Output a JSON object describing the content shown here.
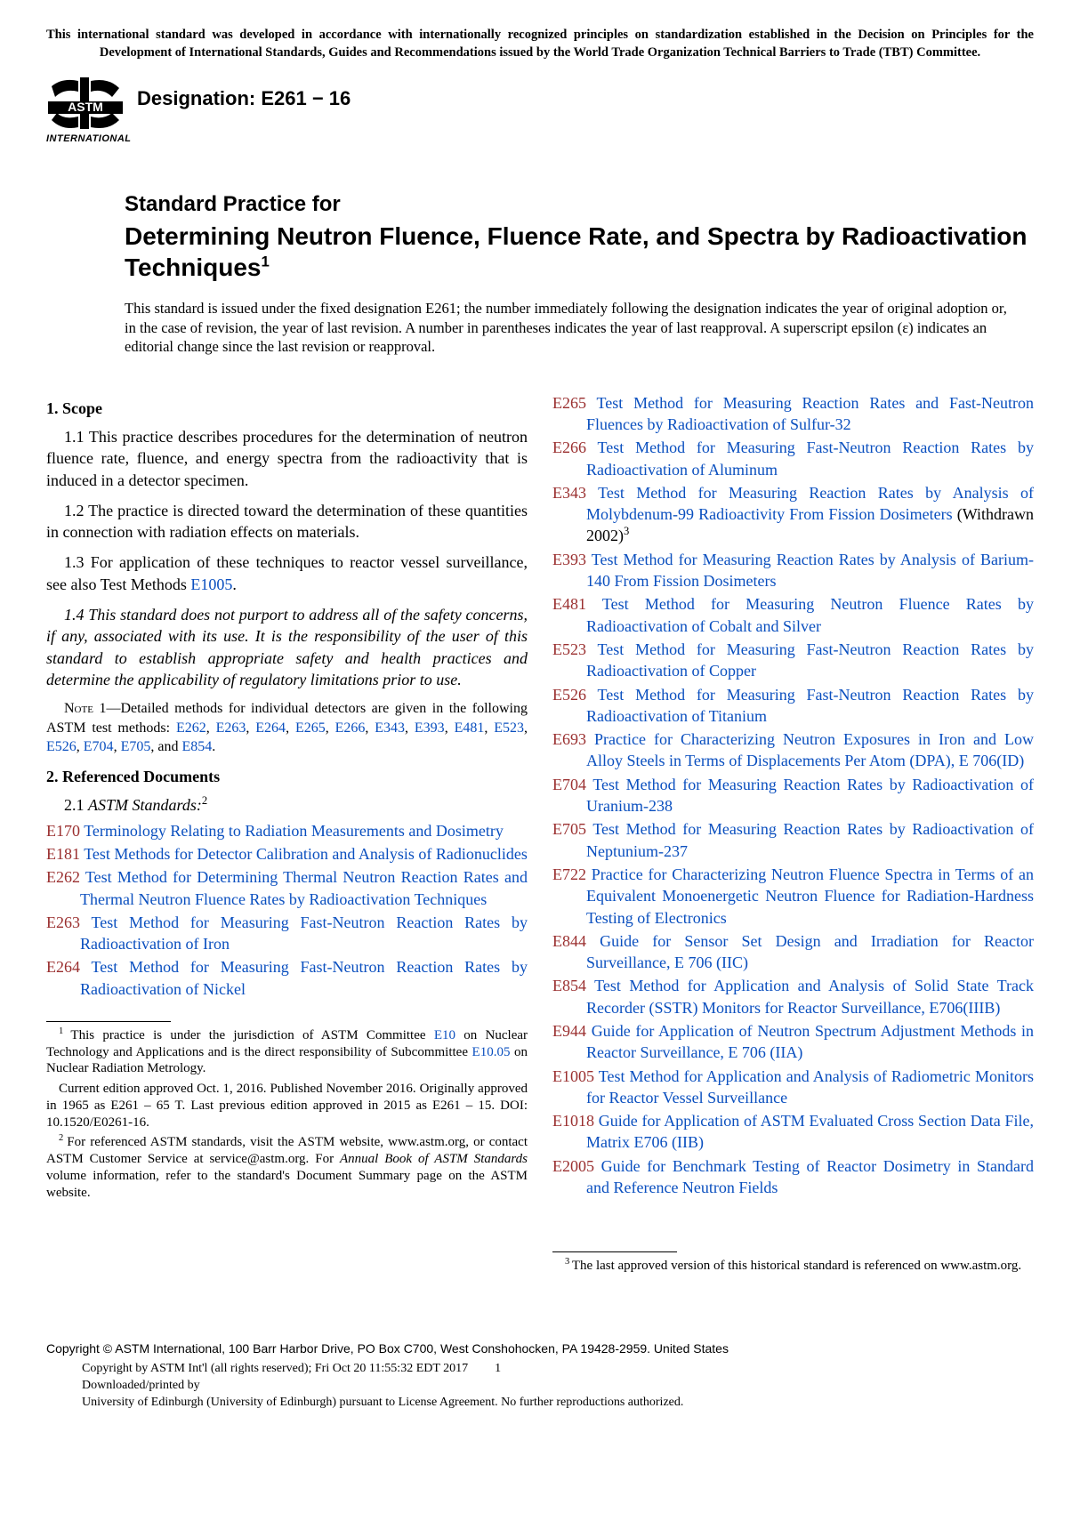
{
  "top_notice": "This international standard was developed in accordance with internationally recognized principles on standardization established in the Decision on Principles for the Development of International Standards, Guides and Recommendations issued by the World Trade Organization Technical Barriers to Trade (TBT) Committee.",
  "logo_label": "INTERNATIONAL",
  "designation": "Designation: E261 − 16",
  "title_pre": "Standard Practice for",
  "title_main": "Determining Neutron Fluence, Fluence Rate, and Spectra by Radioactivation Techniques",
  "title_sup": "1",
  "issuance_note": "This standard is issued under the fixed designation E261; the number immediately following the designation indicates the year of original adoption or, in the case of revision, the year of last revision. A number in parentheses indicates the year of last reapproval. A superscript epsilon (ε) indicates an editorial change since the last revision or reapproval.",
  "sections": {
    "scope_head": "1.  Scope",
    "scope_p1": "1.1 This practice describes procedures for the determination of neutron fluence rate, fluence, and energy spectra from the radioactivity that is induced in a detector specimen.",
    "scope_p2": "1.2 The practice is directed toward the determination of these quantities in connection with radiation effects on materials.",
    "scope_p3_a": "1.3 For application of these techniques to reactor vessel surveillance, see also Test Methods ",
    "scope_p3_link": "E1005",
    "scope_p3_b": ".",
    "scope_p4": "1.4 This standard does not purport to address all of the safety concerns, if any, associated with its use. It is the responsibility of the user of this standard to establish appropriate safety and health practices and determine the applicability of regulatory limitations prior to use.",
    "note1_label": "Note 1",
    "note1_a": "—Detailed methods for individual detectors are given in the following ASTM test methods: ",
    "note_links": [
      "E262",
      "E263",
      "E264",
      "E265",
      "E266",
      "E343",
      "E393",
      "E481",
      "E523",
      "E526",
      "E704",
      "E705"
    ],
    "note_and": ", and ",
    "note_last": "E854",
    "note_end": ".",
    "refdoc_head": "2.  Referenced Documents",
    "refdoc_sub_num": "2.1 ",
    "refdoc_sub_lbl": "ASTM Standards:",
    "refdoc_sup": "2"
  },
  "refs_left": [
    {
      "code": "E170",
      "text": "Terminology Relating to Radiation Measurements and Dosimetry"
    },
    {
      "code": "E181",
      "text": "Test Methods for Detector Calibration and Analysis of Radionuclides"
    },
    {
      "code": "E262",
      "text": "Test Method for Determining Thermal Neutron Reaction Rates and Thermal Neutron Fluence Rates by Radioactivation Techniques"
    },
    {
      "code": "E263",
      "text": "Test Method for Measuring Fast-Neutron Reaction Rates by Radioactivation of Iron"
    },
    {
      "code": "E264",
      "text": "Test Method for Measuring Fast-Neutron Reaction Rates by Radioactivation of Nickel"
    }
  ],
  "refs_right": [
    {
      "code": "E265",
      "text": "Test Method for Measuring Reaction Rates and Fast-Neutron Fluences by Radioactivation of Sulfur-32"
    },
    {
      "code": "E266",
      "text": "Test Method for Measuring Fast-Neutron Reaction Rates by Radioactivation of Aluminum"
    },
    {
      "code": "E343",
      "text": "Test Method for Measuring Reaction Rates by Analysis of Molybdenum-99 Radioactivity From Fission Dosimeters",
      "suffix": " (Withdrawn 2002)",
      "sup": "3"
    },
    {
      "code": "E393",
      "text": "Test Method for Measuring Reaction Rates by Analysis of Barium-140 From Fission Dosimeters"
    },
    {
      "code": "E481",
      "text": "Test Method for Measuring Neutron Fluence Rates by Radioactivation of Cobalt and Silver"
    },
    {
      "code": "E523",
      "text": "Test Method for Measuring Fast-Neutron Reaction Rates by Radioactivation of Copper"
    },
    {
      "code": "E526",
      "text": "Test Method for Measuring Fast-Neutron Reaction Rates by Radioactivation of Titanium"
    },
    {
      "code": "E693",
      "text": "Practice for Characterizing Neutron Exposures in Iron and Low Alloy Steels in Terms of Displacements Per Atom (DPA), E 706(ID)"
    },
    {
      "code": "E704",
      "text": "Test Method for Measuring Reaction Rates by Radioactivation of Uranium-238"
    },
    {
      "code": "E705",
      "text": "Test Method for Measuring Reaction Rates by Radioactivation of Neptunium-237"
    },
    {
      "code": "E722",
      "text": "Practice for Characterizing Neutron Fluence Spectra in Terms of an Equivalent Monoenergetic Neutron Fluence for Radiation-Hardness Testing of Electronics"
    },
    {
      "code": "E844",
      "text": "Guide for Sensor Set Design and Irradiation for Reactor Surveillance, E 706 (IIC)"
    },
    {
      "code": "E854",
      "text": "Test Method for Application and Analysis of Solid State Track Recorder (SSTR) Monitors for Reactor Surveillance, E706(IIIB)"
    },
    {
      "code": "E944",
      "text": "Guide for Application of Neutron Spectrum Adjustment Methods in Reactor Surveillance, E 706 (IIA)"
    },
    {
      "code": "E1005",
      "text": "Test Method for Application and Analysis of Radiometric Monitors for Reactor Vessel Surveillance"
    },
    {
      "code": "E1018",
      "text": "Guide for Application of ASTM Evaluated Cross Section Data File, Matrix E706 (IIB)"
    },
    {
      "code": "E2005",
      "text": "Guide for Benchmark Testing of Reactor Dosimetry in Standard and Reference Neutron Fields"
    }
  ],
  "footnotes_left": [
    {
      "sup": "1",
      "parts": [
        {
          "t": "This practice is under the jurisdiction of ASTM Committee "
        },
        {
          "l": "E10"
        },
        {
          "t": " on Nuclear Technology and Applications and is the direct responsibility of Subcommittee "
        },
        {
          "l": "E10.05"
        },
        {
          "t": " on Nuclear Radiation Metrology."
        }
      ]
    },
    {
      "cont": true,
      "parts": [
        {
          "t": "Current edition approved Oct. 1, 2016. Published November 2016. Originally approved in 1965 as E261 – 65 T. Last previous edition approved in 2015 as E261 – 15. DOI: 10.1520/E0261-16."
        }
      ]
    },
    {
      "sup": "2",
      "parts": [
        {
          "t": "For referenced ASTM standards, visit the ASTM website, www.astm.org, or contact ASTM Customer Service at service@astm.org. For "
        },
        {
          "i": "Annual Book of ASTM Standards"
        },
        {
          "t": " volume information, refer to the standard's Document Summary page on the ASTM website."
        }
      ]
    }
  ],
  "footnotes_right": [
    {
      "sup": "3",
      "parts": [
        {
          "t": "The last approved version of this historical standard is referenced on www.astm.org."
        }
      ]
    }
  ],
  "footer": {
    "copyright_main": "Copyright © ASTM International, 100 Barr Harbor Drive, PO Box C700, West Conshohocken, PA 19428-2959. United States",
    "line2": "Copyright by ASTM Int'l (all rights reserved); Fri Oct 20 11:55:32 EDT 2017",
    "page": "1",
    "line3": "Downloaded/printed by",
    "line4": "University of Edinburgh (University of Edinburgh) pursuant to License Agreement. No further reproductions authorized."
  },
  "colors": {
    "link": "#0a4fbf",
    "refcode": "#9a2f2f"
  }
}
